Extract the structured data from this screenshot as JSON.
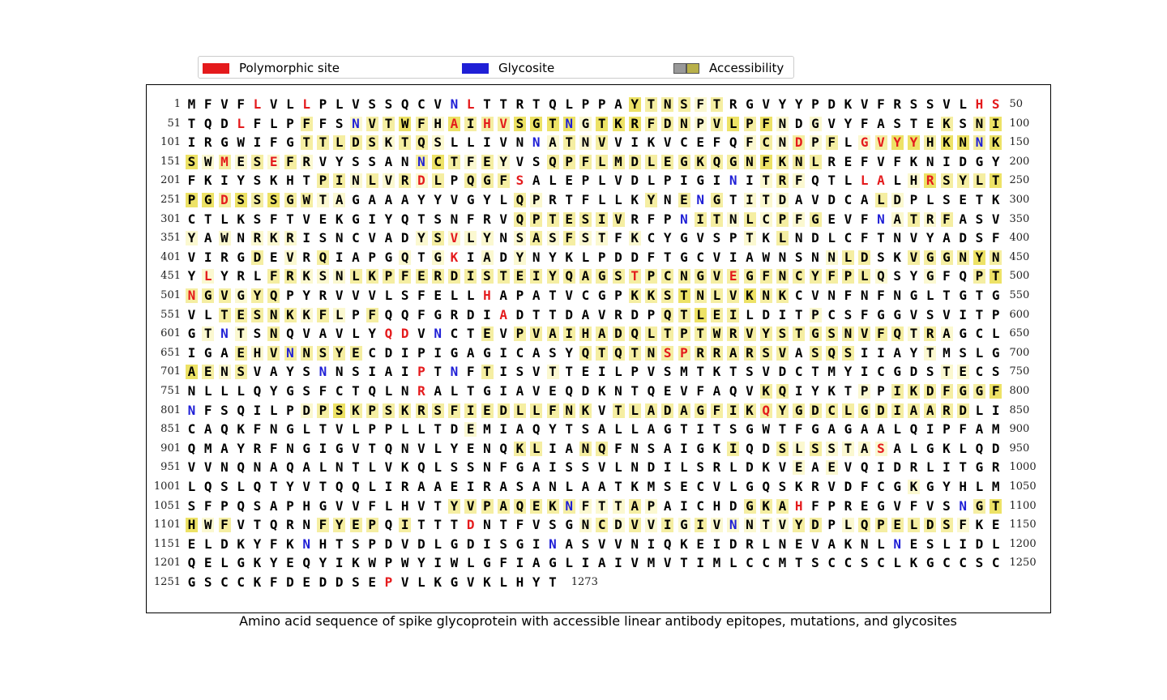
{
  "legend": {
    "polymorphic_label": "Polymorphic site",
    "glycosite_label": "Glycosite",
    "accessibility_label": "Accessibility",
    "polymorphic_color": "#e41a1c",
    "glycosite_color": "#1f1fd6",
    "accessibility_colors": [
      "#999999",
      "#b8b04a"
    ]
  },
  "caption": "Amino acid sequence of spike glycoprotein with accessible linear antibody epitopes, mutations, and glycosites",
  "sequence": {
    "length_label": "1273",
    "residues_per_row": 50,
    "rows": [
      {
        "start": "1",
        "end": "50",
        "seq": "MFVFLVLLPLVSSQCVNLTTRTQLPPAYTNSFTRGVYYPDKVFRSSVLHS",
        "hl": "00000000000000000000000000032221200000000000000000"
      },
      {
        "start": "51",
        "end": "100",
        "seq": "TQDLFLPFFSNVTWFHAIHVSGTNGTKRFDNPVLPFNDGVYFASTEKSNI",
        "hl": "00000002001223213222333313332221232310100000002023"
      },
      {
        "start": "101",
        "end": "150",
        "seq": "IRGWIFGTTLDSKTQSLLIVNNATNVVIKVCEFQFCNDPFLGVYYHKNNK",
        "hl": "00000002222212210000001212000000001212120123323323"
      },
      {
        "start": "151",
        "end": "200",
        "seq": "SWMESEFRVYSSANNCTFEYVSQPFLMDLEGKQGNFKNLREFVFKNIDGY",
        "hl": "31212121000000232121002222222222222322200000000000"
      },
      {
        "start": "201",
        "end": "250",
        "seq": "FKIYSKHTPINLVRDLPQGFSALEPLVDLPIGINITRFQTLLALHRSYLT",
        "hl": "00000000221212120222000000000000000121000000132223"
      },
      {
        "start": "251",
        "end": "300",
        "seq": "PGDSSSGWTAGAAAYYVGYLQPRTFLLKYNENGTITDAVDCALDPLSETK",
        "hl": "33232322110000000000210000002020201110000021000000"
      },
      {
        "start": "301",
        "end": "350",
        "seq": "CTLKSFTVEKGIYQTSNFRVQPTESIVRFPNITNLCPFGEVFNATRFASV",
        "hl": "00000000000000000000222222200002212121200001212000"
      },
      {
        "start": "351",
        "end": "400",
        "seq": "YAWNRKRISNCVADYSVLYNSASFSTFKCYGVSPTKLNDLCFTNVYADSF",
        "hl": "10101110000000121110121211010000001020000000000000"
      },
      {
        "start": "401",
        "end": "450",
        "seq": "VIRGDEVRQIAPGQTGKIADYNYKLPDDFTGCVIAWNSNNLDSKVGGNYN",
        "hl": "00002010200001010010100000000000000000012200222232"
      },
      {
        "start": "451",
        "end": "500",
        "seq": "YLYRLFRKSNLKPFERDISTEIYQAGSTPCNGVEGFNCYFPLQSYGFQPT",
        "hl": "01000221112222222222222222222222222222222210010023"
      },
      {
        "start": "501",
        "end": "550",
        "seq": "NGVGYQPYRVVVLSFELLHAPATVCGPKKSTNLVKNKCVNFNFNGLTGTG",
        "hl": "22212200000000000000000000022232223220000000000000"
      },
      {
        "start": "551",
        "end": "600",
        "seq": "VLTESNKKFLPFQQFGRDIADTTDAVRDPQTLEILDITPCSFGGVSVITP",
        "hl": "00222221210200000000000000000223220000100000000000"
      },
      {
        "start": "601",
        "end": "650",
        "seq": "GTNTSNQVAVLYQDVNCTEVPVAIHADQLTPTWRVYSTGSNVFQTRAGCL",
        "hl": "01010200000000000020222222222222222222222222121000"
      },
      {
        "start": "651",
        "end": "700",
        "seq": "IGAEHVNNSYECDIPIGAGICASYQTQTNSPRRARSVASQSIIAYTMSLG",
        "hl": "00021222222000000000000022222222222220222000010000"
      },
      {
        "start": "701",
        "end": "750",
        "seq": "AENSVAYSNNSIAIPTNFTISVTTEILPVSMTKTSVDCTMYICGDSTECS",
        "hl": "32120000000000000020001000000000000000000000001100"
      },
      {
        "start": "751",
        "end": "800",
        "seq": "NLLLQYGSFCTQLNRALTGIAVEQDKNTQEVFAQVKQIYKTPPIKDFGGF",
        "hl": "00000000000000000000000000000000000220000102222223"
      },
      {
        "start": "801",
        "end": "850",
        "seq": "NFSQILPDPSKPSKRSFIEDLLFNKVTLADAGFIKQYGDCLGDIAARDLI",
        "hl": "00000001232222222222222220222222222222222222222200"
      },
      {
        "start": "851",
        "end": "900",
        "seq": "CAQKFNGLTVLPPLLTDEMIAQYTSALLAGTITSGWTFGAGAALQIPFAM",
        "hl": "00000000000000000100000000000000000000000000000000"
      },
      {
        "start": "901",
        "end": "950",
        "seq": "QMAYRFNGIGVTQNVLYENQKLIANQFNSAIGKIQDSLSSTASALGKLQD",
        "hl": "00000000000000000000220022000000020021211110000000"
      },
      {
        "start": "951",
        "end": "1000",
        "seq": "VVNQNAQALNTLVKQLSSNFGAISSVLNDILSRLDKVEAEVQIDRLITGR",
        "hl": "00000000000000000000000000000000000001010000000000"
      },
      {
        "start": "1001",
        "end": "1050",
        "seq": "LQSLQTYVTQQLIRAAEIRASANLAATKMSECVLGQSKRVDFCGKGYHLM",
        "hl": "00000000000000000000000000000000000000000000100000"
      },
      {
        "start": "1051",
        "end": "1100",
        "seq": "SFPQSAPHGVVFLHVTYVPAQEKNFTTAPAICHDGKAHFPREGVFVSNGT",
        "hl": "00000000000000002222222211121000002220000000000023"
      },
      {
        "start": "1101",
        "end": "1150",
        "seq": "HWFVTQRNFYEPQITTTDNTFVSGNCDVVIGIVNNTVYDPLQPELDSFKE",
        "hl": "31200000222202000000000012121212111112201222222100"
      },
      {
        "start": "1151",
        "end": "1200",
        "seq": "ELDKYFKNHTSPDVDLGDISGINASVVNIQKEIDRLNEVAKNLNESLIDL",
        "hl": "00000000000000000000000000000000000000000000000000"
      },
      {
        "start": "1201",
        "end": "1250",
        "seq": "QELGKYEQYIKWPWYIWLGFIAGLIAIVMVTIMLCCMTSCCSCLKGCCSC",
        "hl": "00000000000000000000000000000000000000000000000000"
      },
      {
        "start": "1251",
        "end": "",
        "seq": "GSCCKFDEDDSEPVLKGVKLHYT",
        "hl": "00000000000000000000000"
      }
    ],
    "polymorphic_positions": [
      5,
      8,
      18,
      49,
      50,
      54,
      67,
      69,
      70,
      138,
      142,
      143,
      144,
      145,
      153,
      156,
      215,
      221,
      242,
      243,
      246,
      253,
      367,
      417,
      452,
      478,
      484,
      501,
      519,
      570,
      613,
      614,
      680,
      681,
      715,
      765,
      836,
      943,
      1088,
      1118,
      1263
    ],
    "glycosite_positions": [
      17,
      61,
      74,
      122,
      149,
      165,
      234,
      282,
      331,
      343,
      603,
      616,
      657,
      709,
      717,
      801,
      1074,
      1098,
      1134,
      1158,
      1173,
      1194
    ]
  }
}
